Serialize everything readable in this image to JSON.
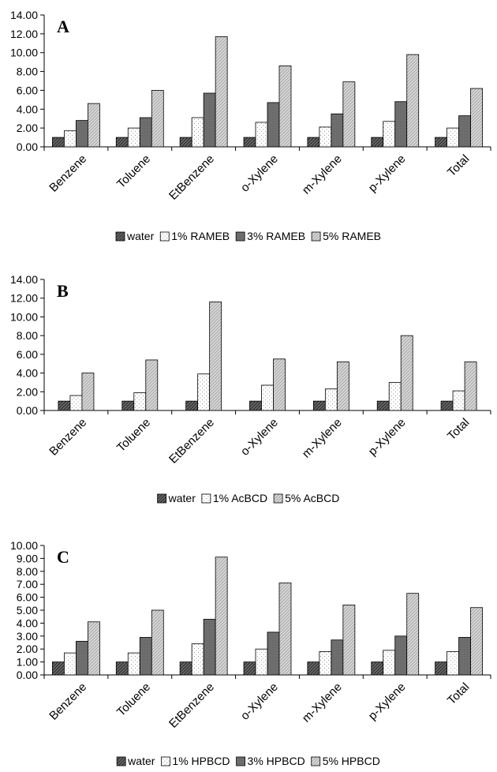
{
  "colors": {
    "water": "#4d4d4d",
    "s1": "#ffffff",
    "s3": "#6a6a6a",
    "s5": "#cfcfcf",
    "axis": "#000000"
  },
  "chart_data": [
    {
      "type": "bar",
      "panel_label": "A",
      "categories": [
        "Benzene",
        "Toluene",
        "EtBenzene",
        "o-Xylene",
        "m-Xylene",
        "p-Xylene",
        "Total"
      ],
      "ylim": [
        0,
        14
      ],
      "y_step": 2,
      "y_decimals": 2,
      "series": [
        {
          "name": "water",
          "pattern": "water",
          "values": [
            1.0,
            1.0,
            1.0,
            1.0,
            1.0,
            1.0,
            1.0
          ]
        },
        {
          "name": "1% RAMEB",
          "pattern": "s1",
          "values": [
            1.7,
            2.0,
            3.1,
            2.6,
            2.1,
            2.7,
            2.0
          ]
        },
        {
          "name": "3% RAMEB",
          "pattern": "s3",
          "values": [
            2.8,
            3.1,
            5.7,
            4.7,
            3.5,
            4.8,
            3.3
          ]
        },
        {
          "name": "5% RAMEB",
          "pattern": "s5",
          "values": [
            4.6,
            6.0,
            11.7,
            8.6,
            6.9,
            9.8,
            6.2
          ]
        }
      ]
    },
    {
      "type": "bar",
      "panel_label": "B",
      "categories": [
        "Benzene",
        "Toluene",
        "EtBenzene",
        "o-Xylene",
        "m-Xylene",
        "p-Xylene",
        "Total"
      ],
      "ylim": [
        0,
        14
      ],
      "y_step": 2,
      "y_decimals": 2,
      "series": [
        {
          "name": "water",
          "pattern": "water",
          "values": [
            1.0,
            1.0,
            1.0,
            1.0,
            1.0,
            1.0,
            1.0
          ]
        },
        {
          "name": "1% AcBCD",
          "pattern": "s1",
          "values": [
            1.6,
            1.9,
            3.9,
            2.7,
            2.3,
            3.0,
            2.1
          ]
        },
        {
          "name": "5% AcBCD",
          "pattern": "s5",
          "values": [
            4.0,
            5.4,
            11.6,
            5.5,
            5.2,
            8.0,
            5.2
          ]
        }
      ]
    },
    {
      "type": "bar",
      "panel_label": "C",
      "categories": [
        "Benzene",
        "Toluene",
        "EtBenzene",
        "o-Xylene",
        "m-Xylene",
        "p-Xylene",
        "Total"
      ],
      "ylim": [
        0,
        10
      ],
      "y_step": 1,
      "y_decimals": 2,
      "series": [
        {
          "name": "water",
          "pattern": "water",
          "values": [
            1.0,
            1.0,
            1.0,
            1.0,
            1.0,
            1.0,
            1.0
          ]
        },
        {
          "name": "1% HPBCD",
          "pattern": "s1",
          "values": [
            1.7,
            1.7,
            2.4,
            2.0,
            1.8,
            1.9,
            1.8
          ]
        },
        {
          "name": "3% HPBCD",
          "pattern": "s3",
          "values": [
            2.6,
            2.9,
            4.3,
            3.3,
            2.7,
            3.0,
            2.9
          ]
        },
        {
          "name": "5% HPBCD",
          "pattern": "s5",
          "values": [
            4.1,
            5.0,
            9.1,
            7.1,
            5.4,
            6.3,
            5.2
          ]
        }
      ]
    }
  ]
}
